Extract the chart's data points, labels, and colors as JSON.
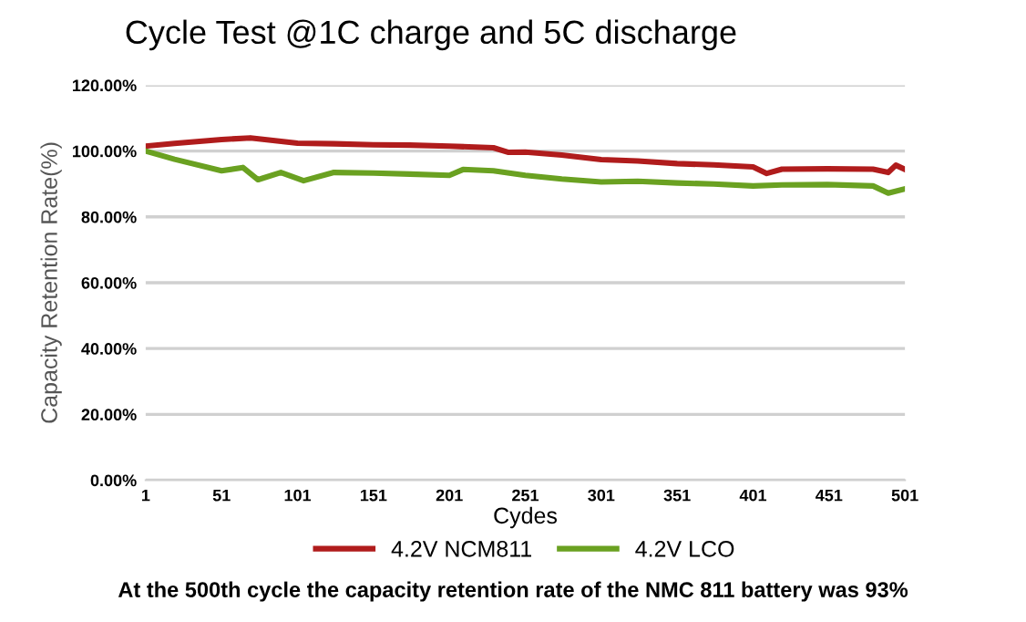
{
  "chart_data": {
    "type": "line",
    "title": "Cycle Test @1C charge and 5C discharge",
    "xlabel": "Cydes",
    "ylabel": "Capacity Retention Rate(%)",
    "series": [
      {
        "name": "4.2V NCM811",
        "color": "#b01c1c",
        "x": [
          1,
          20,
          51,
          70,
          101,
          125,
          151,
          175,
          201,
          230,
          240,
          251,
          275,
          301,
          325,
          351,
          375,
          401,
          410,
          420,
          450,
          480,
          490,
          495,
          501
        ],
        "values": [
          101.5,
          102.3,
          103.5,
          104,
          102.4,
          102.2,
          101.9,
          101.8,
          101.5,
          101,
          99.6,
          99.7,
          98.8,
          97.4,
          97,
          96.2,
          95.8,
          95.2,
          93.2,
          94.5,
          94.6,
          94.5,
          93.5,
          95.7,
          94.4
        ]
      },
      {
        "name": "4.2V LCO",
        "color": "#6aa121",
        "x": [
          1,
          20,
          51,
          65,
          75,
          90,
          105,
          125,
          151,
          175,
          201,
          210,
          230,
          251,
          275,
          301,
          325,
          351,
          375,
          401,
          420,
          450,
          480,
          490,
          501
        ],
        "values": [
          100,
          97.5,
          94,
          95,
          91.3,
          93.5,
          91,
          93.5,
          93.3,
          93,
          92.6,
          94.4,
          94,
          92.6,
          91.5,
          90.6,
          90.8,
          90.3,
          90,
          89.4,
          89.7,
          89.8,
          89.4,
          87.2,
          88.5
        ]
      }
    ],
    "xlim": [
      1,
      501
    ],
    "xticks": [
      1,
      51,
      101,
      151,
      201,
      251,
      301,
      351,
      401,
      451,
      501
    ],
    "ylim": [
      0,
      120
    ],
    "yticks": [
      {
        "value": 0,
        "label": "0.00%"
      },
      {
        "value": 20,
        "label": "20.00%"
      },
      {
        "value": 40,
        "label": "40.00%"
      },
      {
        "value": 60,
        "label": "60.00%"
      },
      {
        "value": 80,
        "label": "80.00%"
      },
      {
        "value": 100,
        "label": "100.00%"
      },
      {
        "value": 120,
        "label": "120.00%"
      }
    ],
    "grid": "y",
    "legend": "bottom",
    "marker": "none",
    "line_style": "solid",
    "annotations": [
      "At the 500th cycle the capacity retention rate of the NMC 811 battery was 93%"
    ]
  }
}
